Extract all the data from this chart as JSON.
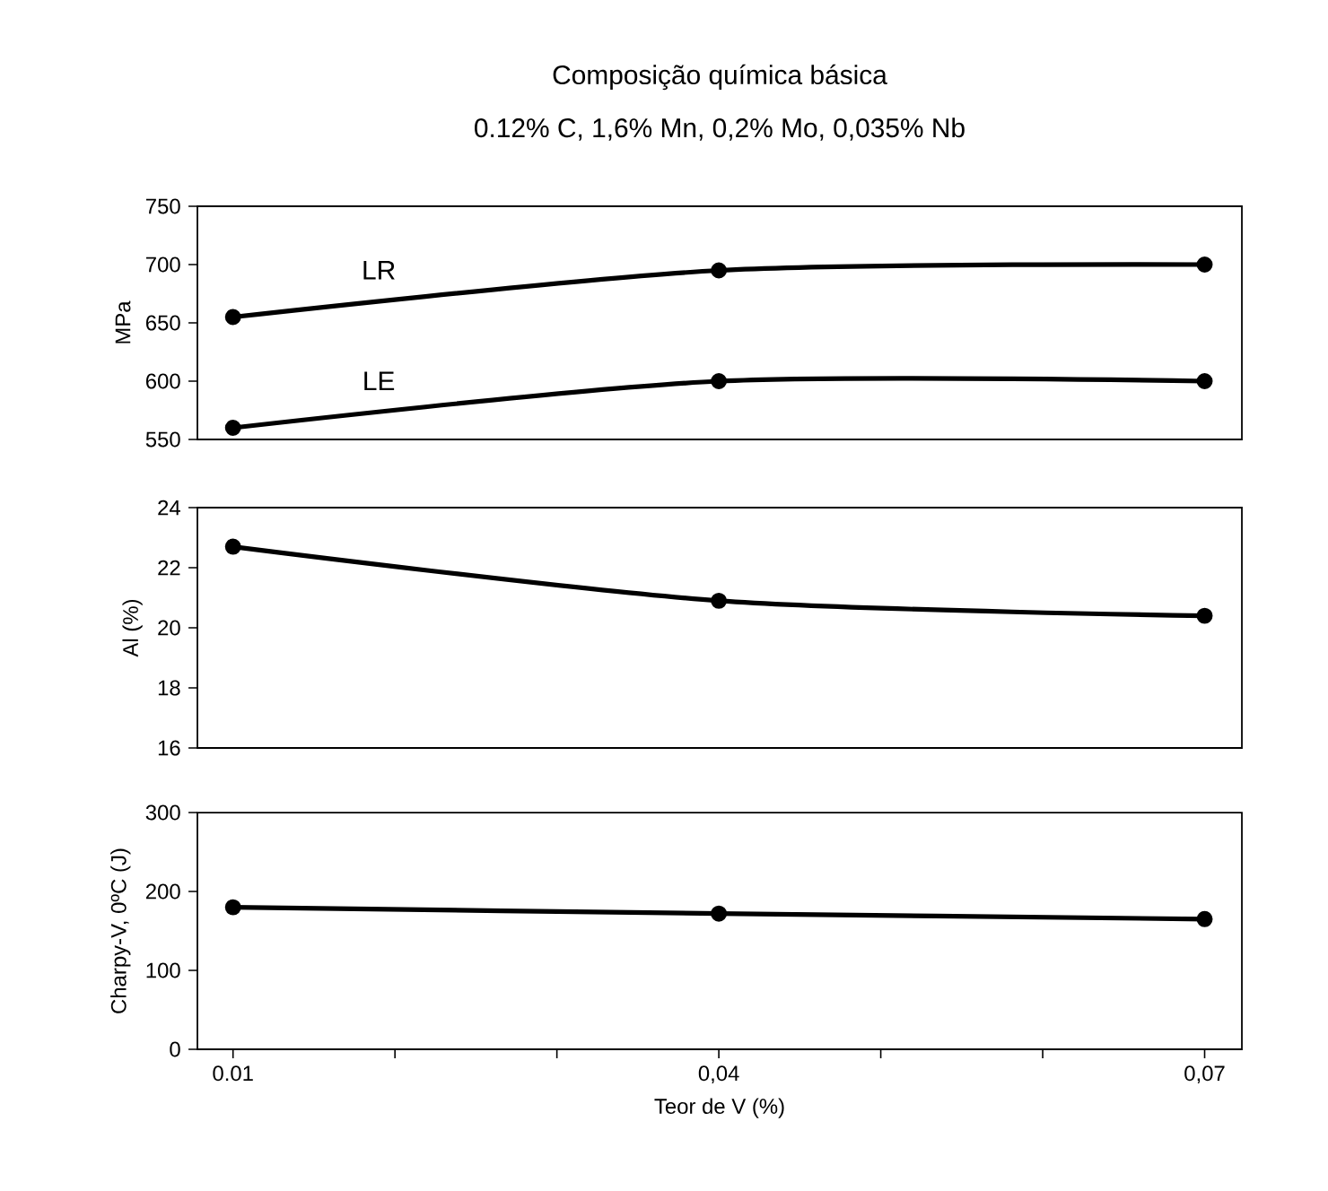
{
  "chart_data": [
    {
      "type": "line",
      "title": "Composição química básica",
      "subtitle": "0.12% C, 1,6% Mn, 0,2% Mo, 0,035% Nb",
      "ylabel": "MPa",
      "x": [
        0.01,
        0.04,
        0.07
      ],
      "xlim": [
        0.0078,
        0.0723
      ],
      "ylim": [
        550,
        750
      ],
      "yticks": [
        550,
        600,
        650,
        700,
        750
      ],
      "tick_labels": "y",
      "marker": "circle",
      "grid": false,
      "series": [
        {
          "name": "LR",
          "color": "#000000",
          "values": [
            655,
            695,
            700
          ]
        },
        {
          "name": "LE",
          "color": "#000000",
          "values": [
            560,
            600,
            600
          ]
        }
      ]
    },
    {
      "type": "line",
      "ylabel": "Al (%)",
      "x": [
        0.01,
        0.04,
        0.07
      ],
      "xlim": [
        0.0078,
        0.0723
      ],
      "ylim": [
        16,
        24
      ],
      "yticks": [
        16,
        18,
        20,
        22,
        24
      ],
      "tick_labels": "y",
      "marker": "circle",
      "grid": false,
      "series": [
        {
          "color": "#000000",
          "values": [
            22.7,
            20.9,
            20.4
          ]
        }
      ]
    },
    {
      "type": "line",
      "xlabel": "Teor de V (%)",
      "ylabel": "Charpy-V, 0ºC (J)",
      "x": [
        0.01,
        0.04,
        0.07
      ],
      "xlim": [
        0.0078,
        0.0723
      ],
      "ylim": [
        0,
        300
      ],
      "yticks": [
        0,
        100,
        200,
        300
      ],
      "xticks": [
        {
          "value": 0.01,
          "label": "0.01"
        },
        {
          "value": 0.02,
          "label": null
        },
        {
          "value": 0.03,
          "label": null
        },
        {
          "value": 0.04,
          "label": "0,04"
        },
        {
          "value": 0.05,
          "label": null
        },
        {
          "value": 0.06,
          "label": null
        },
        {
          "value": 0.07,
          "label": "0,07"
        }
      ],
      "marker": "circle",
      "grid": false,
      "series": [
        {
          "color": "#000000",
          "values": [
            180,
            172,
            165
          ]
        }
      ]
    }
  ]
}
